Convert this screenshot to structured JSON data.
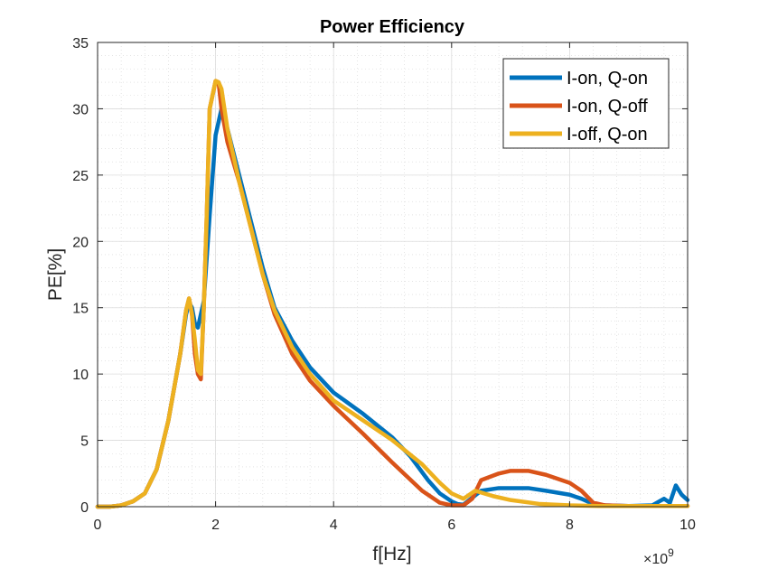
{
  "chart_data": {
    "type": "line",
    "title": "Power Efficiency",
    "xlabel": "f[Hz]",
    "ylabel": "PE[%]",
    "x_exponent_label": "×10",
    "x_exponent_power": "9",
    "xlim": [
      0,
      10
    ],
    "ylim": [
      0,
      35
    ],
    "x_ticks": [
      0,
      2,
      4,
      6,
      8,
      10
    ],
    "y_ticks": [
      0,
      5,
      10,
      15,
      20,
      25,
      30,
      35
    ],
    "grid": true,
    "minor_grid": true,
    "legend_position": "top-right",
    "series": [
      {
        "name": "I-on, Q-on",
        "color": "#0072BD",
        "x": [
          0,
          0.2,
          0.4,
          0.6,
          0.8,
          1.0,
          1.2,
          1.4,
          1.5,
          1.55,
          1.6,
          1.65,
          1.7,
          1.75,
          1.8,
          1.9,
          2.0,
          2.1,
          2.2,
          2.4,
          2.6,
          2.8,
          3.0,
          3.3,
          3.6,
          4.0,
          4.5,
          5.0,
          5.3,
          5.6,
          5.8,
          6.0,
          6.1,
          6.2,
          6.3,
          6.5,
          6.8,
          7.0,
          7.3,
          7.6,
          8.0,
          8.2,
          8.4,
          8.6,
          9.0,
          9.4,
          9.6,
          9.7,
          9.8,
          9.9,
          10.0
        ],
        "y": [
          0,
          0,
          0.1,
          0.4,
          1.0,
          2.8,
          6.5,
          11.5,
          14.5,
          15.4,
          15.0,
          13.8,
          13.5,
          14.5,
          15.5,
          22.0,
          28.0,
          30.0,
          28.5,
          25.0,
          21.5,
          18.0,
          15.0,
          12.5,
          10.5,
          8.6,
          7.0,
          5.2,
          3.8,
          2.0,
          1.0,
          0.4,
          0.2,
          0.15,
          0.5,
          1.2,
          1.4,
          1.4,
          1.4,
          1.2,
          0.9,
          0.6,
          0.2,
          0.1,
          0.05,
          0.1,
          0.6,
          0.3,
          1.6,
          0.9,
          0.5
        ]
      },
      {
        "name": "I-on, Q-off",
        "color": "#D95319",
        "x": [
          0,
          0.2,
          0.4,
          0.6,
          0.8,
          1.0,
          1.2,
          1.4,
          1.5,
          1.55,
          1.6,
          1.65,
          1.7,
          1.75,
          1.8,
          1.85,
          1.9,
          2.0,
          2.05,
          2.1,
          2.2,
          2.4,
          2.6,
          2.8,
          3.0,
          3.3,
          3.6,
          4.0,
          4.5,
          5.0,
          5.5,
          5.8,
          6.0,
          6.2,
          6.35,
          6.5,
          6.8,
          7.0,
          7.3,
          7.6,
          8.0,
          8.2,
          8.4,
          8.6,
          9.0,
          9.5,
          10.0
        ],
        "y": [
          0,
          0,
          0.1,
          0.4,
          1.0,
          2.8,
          6.5,
          11.5,
          14.8,
          15.7,
          14.5,
          11.5,
          10.0,
          9.6,
          15.0,
          22.0,
          30.0,
          32.1,
          32.0,
          30.0,
          27.5,
          24.5,
          21.0,
          17.5,
          14.5,
          11.5,
          9.5,
          7.6,
          5.5,
          3.3,
          1.2,
          0.3,
          0.1,
          0.1,
          0.6,
          2.0,
          2.5,
          2.7,
          2.7,
          2.4,
          1.8,
          1.2,
          0.3,
          0.1,
          0.05,
          0.05,
          0.05
        ]
      },
      {
        "name": "I-off, Q-on",
        "color": "#EDB120",
        "x": [
          0,
          0.2,
          0.4,
          0.6,
          0.8,
          1.0,
          1.2,
          1.4,
          1.5,
          1.55,
          1.6,
          1.65,
          1.7,
          1.75,
          1.8,
          1.85,
          1.9,
          2.0,
          2.05,
          2.1,
          2.2,
          2.4,
          2.6,
          2.8,
          3.0,
          3.3,
          3.6,
          4.0,
          4.5,
          5.0,
          5.5,
          5.8,
          6.0,
          6.2,
          6.4,
          6.7,
          7.0,
          7.5,
          8.0,
          8.5,
          9.0,
          9.5,
          10.0
        ],
        "y": [
          0,
          0,
          0.1,
          0.4,
          1.0,
          2.8,
          6.5,
          11.5,
          14.8,
          15.7,
          14.5,
          12.5,
          10.3,
          10.0,
          15.0,
          22.0,
          30.0,
          32.1,
          32.0,
          31.5,
          28.5,
          24.5,
          21.0,
          17.5,
          14.8,
          12.0,
          10.0,
          8.0,
          6.5,
          5.0,
          3.2,
          1.8,
          1.0,
          0.6,
          1.2,
          0.8,
          0.5,
          0.2,
          0.1,
          0.05,
          0.05,
          0.05,
          0.05
        ]
      }
    ]
  }
}
